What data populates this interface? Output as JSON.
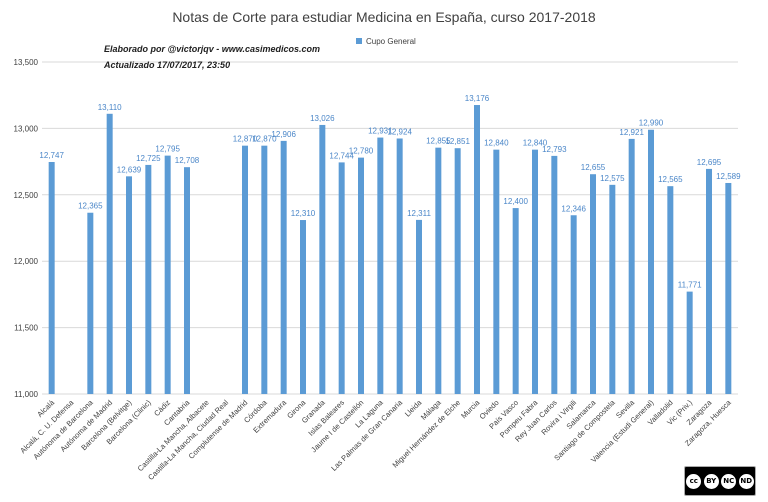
{
  "chart_data": {
    "type": "bar",
    "title": "Notas de Corte para estudiar Medicina en España, curso 2017-2018",
    "legend": "Cupo General",
    "ylim": [
      11000,
      13500
    ],
    "yticks": [
      "11,000",
      "11,500",
      "12,000",
      "12,500",
      "13,000",
      "13,500"
    ],
    "ytick_values": [
      11000,
      11500,
      12000,
      12500,
      13000,
      13500
    ],
    "categories": [
      "Alcalá",
      "Alcalá, C. U. Defensa",
      "Autónoma de Barcelona",
      "Autónoma de Madrid",
      "Barcelona (Belvitge)",
      "Barcelona (Clinic)",
      "Cádiz",
      "Cantabria",
      "Castilla-La Mancha, Albacete",
      "Castilla-La Mancha, Ciudad Real",
      "Complutense de Madrid",
      "Córdoba",
      "Extremadura",
      "Girona",
      "Granada",
      "Islas Baleares",
      "Jaume I de Castellón",
      "La Laguna",
      "Las Palmas de Gran Canaria",
      "Lleida",
      "Málaga",
      "Miguel Hernández de Elche",
      "Murcia",
      "Oviedo",
      "País Vasco",
      "Pompeu Fabra",
      "Rey Juan Carlos",
      "Rovira i Virgili",
      "Salamanca",
      "Santiago de Compostela",
      "Sevilla",
      "Valencia (Estudi General)",
      "Valladolid",
      "Vic (Priv.)",
      "Zaragoza",
      "Zaragoza, Huesca"
    ],
    "values": [
      12747,
      null,
      12365,
      13110,
      12639,
      12725,
      12795,
      12708,
      null,
      null,
      12870,
      12870,
      12906,
      12310,
      13026,
      12744,
      12780,
      12931,
      12924,
      12311,
      12855,
      12851,
      13176,
      12840,
      12400,
      12840,
      12793,
      12346,
      12655,
      12575,
      12921,
      12990,
      12565,
      11771,
      12695,
      12589
    ],
    "value_labels": [
      "12,747",
      "",
      "12,365",
      "13,110",
      "12,639",
      "12,725",
      "12,795",
      "12,708",
      "",
      "",
      "12,870",
      "12,870",
      "12,906",
      "12,310",
      "13,026",
      "12,744",
      "12,780",
      "12,931",
      "12,924",
      "12,311",
      "12,855",
      "12,851",
      "13,176",
      "12,840",
      "12,400",
      "12,840",
      "12,793",
      "12,346",
      "12,655",
      "12,575",
      "12,921",
      "12,990",
      "12,565",
      "11,771",
      "12,695",
      "12,589"
    ],
    "bar_color": "#5b9bd5",
    "label_color": "#4a86c8",
    "grid": true
  },
  "credits": {
    "line1": "Elaborado por @victorjqv - www.casimedicos.com",
    "line2": "Actualizado 17/07/2017, 23:50"
  },
  "license": {
    "icons": [
      "cc",
      "by",
      "nc",
      "nd"
    ],
    "labels": [
      "BY",
      "NC",
      "ND"
    ]
  }
}
